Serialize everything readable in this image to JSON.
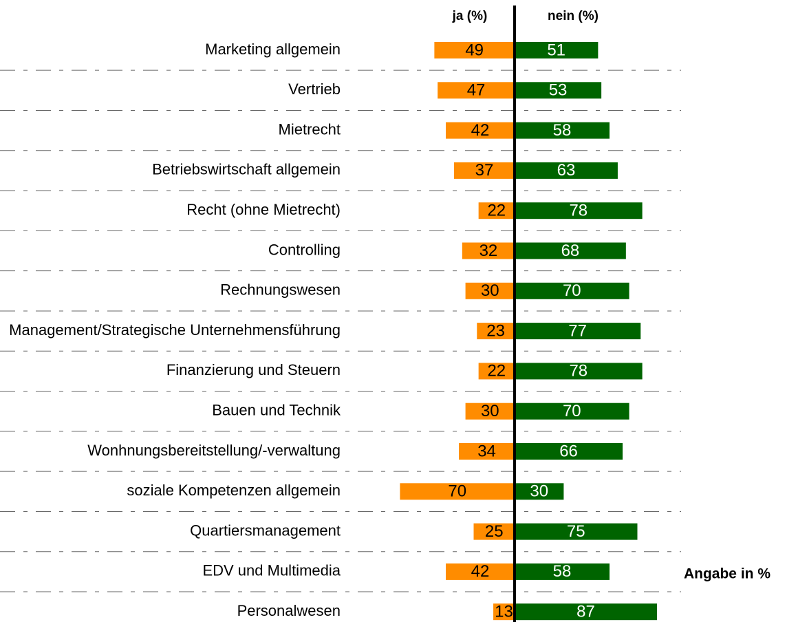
{
  "chart_data": {
    "type": "diverging-bar",
    "categories": [
      "Marketing allgemein",
      "Vertrieb",
      "Mietrecht",
      "Betriebswirtschaft allgemein",
      "Recht (ohne Mietrecht)",
      "Controlling",
      "Rechnungswesen",
      "Management/Strategische Unternehmensführung",
      "Finanzierung und Steuern",
      "Bauen und Technik",
      "Wonhnungsbereitstellung/-verwaltung",
      "soziale Kompetenzen allgemein",
      "Quartiersmanagement",
      "EDV und Multimedia",
      "Personalwesen"
    ],
    "series": [
      {
        "name": "ja (%)",
        "color": "#ff8c00",
        "values": [
          49,
          47,
          42,
          37,
          22,
          32,
          30,
          23,
          22,
          30,
          34,
          70,
          25,
          42,
          13
        ]
      },
      {
        "name": "nein (%)",
        "color": "#006400",
        "values": [
          51,
          53,
          58,
          63,
          78,
          68,
          70,
          77,
          78,
          70,
          66,
          30,
          75,
          58,
          87
        ]
      }
    ],
    "note": "Angabe in %"
  }
}
